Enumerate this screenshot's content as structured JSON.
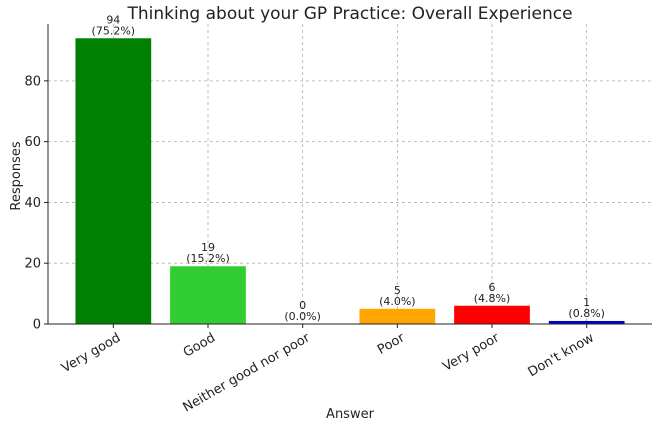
{
  "chart_data": {
    "type": "bar",
    "title": "Thinking about your GP Practice: Overall Experience",
    "xlabel": "Answer",
    "ylabel": "Responses",
    "categories": [
      "Very good",
      "Good",
      "Neither good nor poor",
      "Poor",
      "Very poor",
      "Don't know"
    ],
    "values": [
      94,
      19,
      0,
      5,
      6,
      1
    ],
    "percent_labels": [
      "(75.2%)",
      "(15.2%)",
      "(0.0%)",
      "(4.0%)",
      "(4.8%)",
      "(0.8%)"
    ],
    "colors": [
      "#008000",
      "#32cd32",
      "#808080",
      "#ffa500",
      "#ff0000",
      "#0000cd"
    ],
    "ylim": [
      0,
      98.7
    ],
    "yticks": [
      0,
      20,
      40,
      60,
      80
    ],
    "grid": true,
    "legend": "none"
  }
}
